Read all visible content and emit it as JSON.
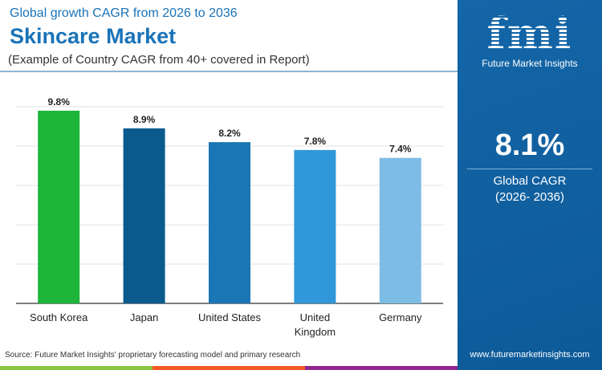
{
  "header": {
    "subtitle_top": "Global growth CAGR from 2026 to 2036",
    "title": "Skincare Market",
    "note": "(Example of Country CAGR from 40+ covered in Report)"
  },
  "panel": {
    "logo_text": "fmi",
    "logo_caption": "Future Market Insights",
    "global_value": "8.1%",
    "global_label": "Global CAGR",
    "global_period": "(2026- 2036)",
    "website": "www.futuremarketinsights.com"
  },
  "footer": {
    "source": "Source: Future Market Insights' proprietary forecasting model and primary research",
    "strip_colors": [
      "#8dc63f",
      "#f05a28",
      "#92278f"
    ]
  },
  "chart_data": {
    "type": "bar",
    "title": "Skincare Market",
    "xlabel": "",
    "ylabel": "",
    "ylim": [
      0,
      10
    ],
    "grid": true,
    "categories": [
      "South Korea",
      "Japan",
      "United States",
      "United Kingdom",
      "Germany"
    ],
    "category_lines": [
      [
        "South Korea"
      ],
      [
        "Japan"
      ],
      [
        "United States"
      ],
      [
        "United",
        "Kingdom"
      ],
      [
        "Germany"
      ]
    ],
    "values": [
      9.8,
      8.9,
      8.2,
      7.8,
      7.4
    ],
    "labels": [
      "9.8%",
      "8.9%",
      "8.2%",
      "7.8%",
      "7.4%"
    ],
    "colors": [
      "#1db53a",
      "#0a5a8e",
      "#1a76b5",
      "#3097d9",
      "#7dbde5"
    ]
  }
}
